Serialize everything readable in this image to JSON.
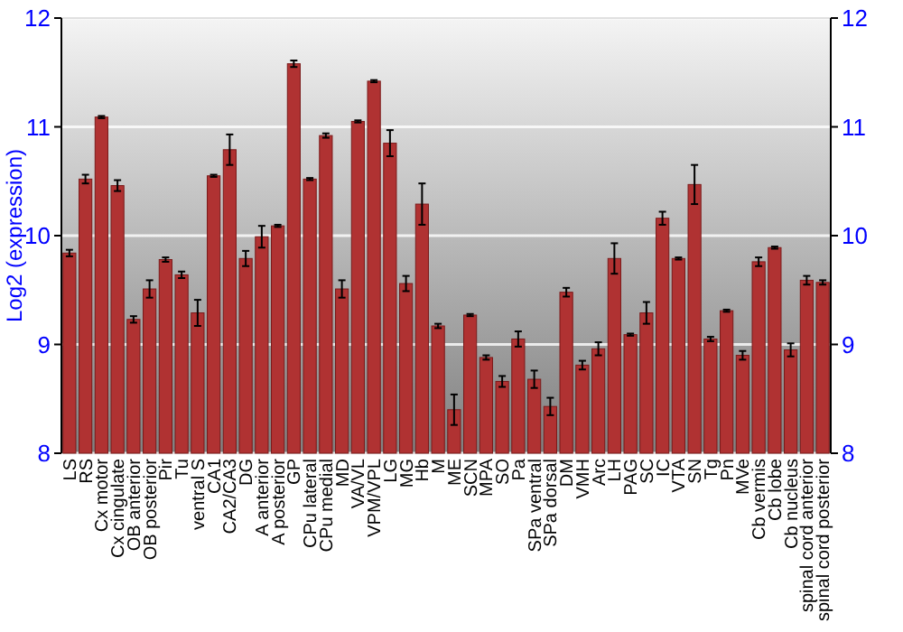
{
  "chart_data": {
    "type": "bar",
    "ylabel": "Log2 (expression)",
    "categories": [
      "LS",
      "RS",
      "Cx motor",
      "Cx cingulate",
      "OB anterior",
      "OB posterior",
      "Pir",
      "Tu",
      "ventral S",
      "CA1",
      "CA2/CA3",
      "DG",
      "A anterior",
      "A posterior",
      "GP",
      "CPu lateral",
      "CPu medial",
      "MD",
      "VA/VL",
      "VPM/VPL",
      "LG",
      "MG",
      "Hb",
      "M",
      "ME",
      "SCN",
      "MPA",
      "SO",
      "Pa",
      "SPa ventral",
      "SPa dorsal",
      "DM",
      "VMH",
      "Arc",
      "LH",
      "PAG",
      "SC",
      "IC",
      "VTA",
      "SN",
      "Tg",
      "Pn",
      "MVe",
      "Cb vermis",
      "Cb lobe",
      "Cb nucleus",
      "spinal cord anterior",
      "spinal cord posterior"
    ],
    "values": [
      9.84,
      10.52,
      11.09,
      10.46,
      9.23,
      9.51,
      9.78,
      9.64,
      9.29,
      10.55,
      10.79,
      9.79,
      9.99,
      10.09,
      11.58,
      10.52,
      10.92,
      9.51,
      11.05,
      11.42,
      10.85,
      9.56,
      10.29,
      9.17,
      8.4,
      9.27,
      8.88,
      8.66,
      9.05,
      8.68,
      8.43,
      9.48,
      8.81,
      8.96,
      9.79,
      9.09,
      9.29,
      10.16,
      9.79,
      10.47,
      9.05,
      9.31,
      8.9,
      9.76,
      9.89,
      8.95,
      9.59,
      9.57
    ],
    "errors": [
      0.03,
      0.04,
      0.01,
      0.05,
      0.03,
      0.08,
      0.02,
      0.03,
      0.12,
      0.01,
      0.14,
      0.07,
      0.1,
      0.01,
      0.03,
      0.01,
      0.02,
      0.08,
      0.01,
      0.01,
      0.12,
      0.07,
      0.19,
      0.02,
      0.14,
      0.01,
      0.02,
      0.05,
      0.07,
      0.08,
      0.08,
      0.04,
      0.04,
      0.06,
      0.14,
      0.01,
      0.1,
      0.06,
      0.01,
      0.18,
      0.02,
      0.01,
      0.04,
      0.04,
      0.01,
      0.06,
      0.04,
      0.02
    ],
    "color": "#b03232",
    "ylim": [
      8,
      12
    ],
    "yticks": [
      8,
      9,
      10,
      11,
      12
    ],
    "y2lim": [
      8,
      12
    ],
    "y2ticks": [
      8,
      9,
      10,
      11,
      12
    ],
    "grid": "y"
  }
}
